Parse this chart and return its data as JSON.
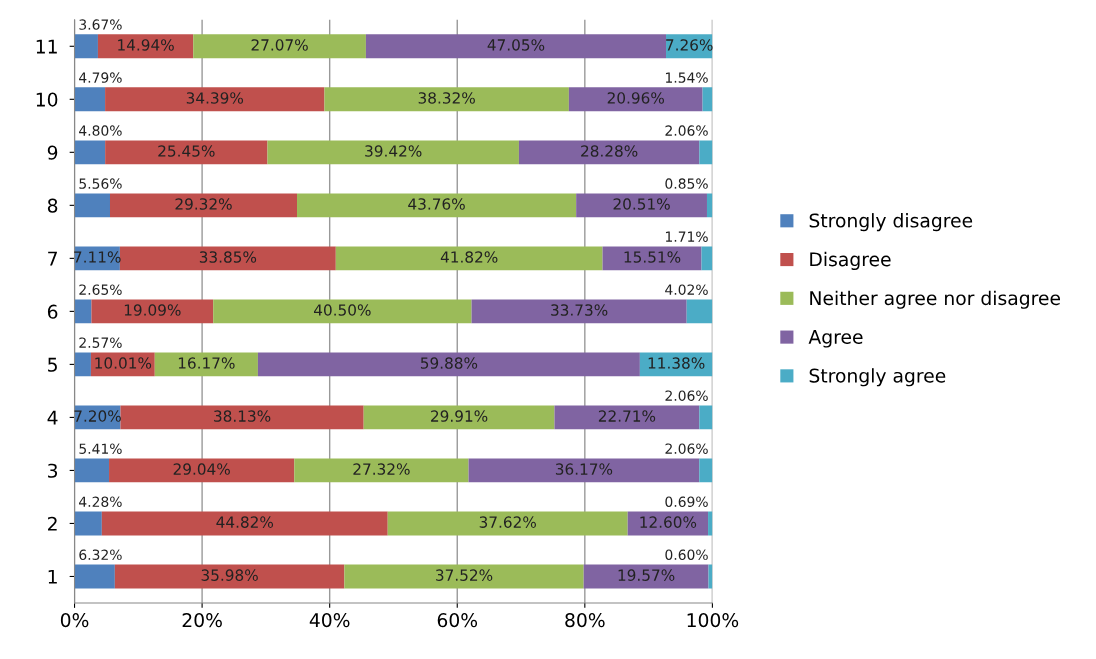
{
  "chart_data": {
    "type": "bar",
    "orientation": "horizontal",
    "stacked": true,
    "categories": [
      "11",
      "10",
      "9",
      "8",
      "7",
      "6",
      "5",
      "4",
      "3",
      "2",
      "1"
    ],
    "series": [
      {
        "name": "Strongly disagree",
        "color": "#4f81bd",
        "values": [
          3.67,
          4.79,
          4.8,
          5.56,
          7.11,
          2.65,
          2.57,
          7.2,
          5.41,
          4.28,
          6.32
        ],
        "value_labels": [
          "3.67%",
          "4.79%",
          "4.80%",
          "5.56%",
          "7.11%",
          "2.65%",
          "2.57%",
          "7.20%",
          "5.41%",
          "4.28%",
          "6.32%"
        ]
      },
      {
        "name": "Disagree",
        "color": "#c0504d",
        "values": [
          14.94,
          34.39,
          25.45,
          29.32,
          33.85,
          19.09,
          10.01,
          38.13,
          29.04,
          44.82,
          35.98
        ],
        "value_labels": [
          "14.94%",
          "34.39%",
          "25.45%",
          "29.32%",
          "33.85%",
          "19.09%",
          "10.01%",
          "38.13%",
          "29.04%",
          "44.82%",
          "35.98%"
        ]
      },
      {
        "name": "Neither agree nor disagree",
        "color": "#9bbb59",
        "values": [
          27.07,
          38.32,
          39.42,
          43.76,
          41.82,
          40.5,
          16.17,
          29.91,
          27.32,
          37.62,
          37.52
        ],
        "value_labels": [
          "27.07%",
          "38.32%",
          "39.42%",
          "43.76%",
          "41.82%",
          "40.50%",
          "16.17%",
          "29.91%",
          "27.32%",
          "37.62%",
          "37.52%"
        ]
      },
      {
        "name": "Agree",
        "color": "#8064a2",
        "values": [
          47.05,
          20.96,
          28.28,
          20.51,
          15.51,
          33.73,
          59.88,
          22.71,
          36.17,
          12.6,
          19.57
        ],
        "value_labels": [
          "47.05%",
          "20.96%",
          "28.28%",
          "20.51%",
          "15.51%",
          "33.73%",
          "59.88%",
          "22.71%",
          "36.17%",
          "12.60%",
          "19.57%"
        ]
      },
      {
        "name": "Strongly agree",
        "color": "#4bacc6",
        "values": [
          7.26,
          1.54,
          2.06,
          0.85,
          1.71,
          4.02,
          11.38,
          2.06,
          2.06,
          0.69,
          0.6
        ],
        "value_labels": [
          "7.26%",
          "1.54%",
          "2.06%",
          "0.85%",
          "1.71%",
          "4.02%",
          "11.38%",
          "2.06%",
          "2.06%",
          "0.69%",
          "0.60%"
        ]
      }
    ],
    "xlim": [
      0,
      100
    ],
    "xticks": [
      {
        "value": 0,
        "label": "0%"
      },
      {
        "value": 20,
        "label": "20%"
      },
      {
        "value": 40,
        "label": "40%"
      },
      {
        "value": 60,
        "label": "60%"
      },
      {
        "value": 80,
        "label": "80%"
      },
      {
        "value": 100,
        "label": "100%"
      }
    ],
    "grid": "x",
    "legend": "right"
  }
}
